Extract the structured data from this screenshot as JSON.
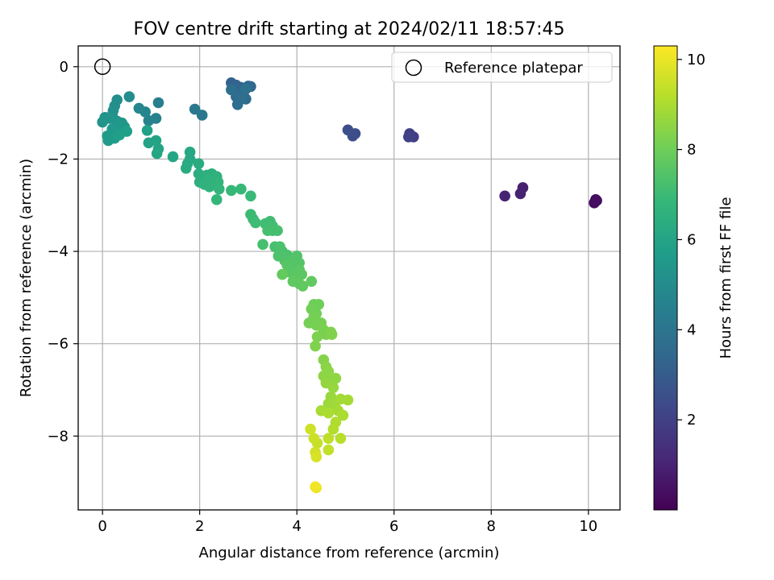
{
  "chart_data": {
    "type": "scatter",
    "title": "FOV centre drift starting at 2024/02/11 18:57:45",
    "xlabel": "Angular distance from reference (arcmin)",
    "ylabel": "Rotation from reference (arcmin)",
    "xlim": [
      -0.5,
      10.65
    ],
    "ylim": [
      -9.6,
      0.45
    ],
    "xticks": [
      0,
      2,
      4,
      6,
      8,
      10
    ],
    "xtick_labels": [
      "0",
      "2",
      "4",
      "6",
      "8",
      "10"
    ],
    "yticks": [
      0,
      -2,
      -4,
      -6,
      -8
    ],
    "ytick_labels": [
      "0",
      "−2",
      "−4",
      "−6",
      "−8"
    ],
    "grid": true,
    "legend": {
      "placement": "upper right",
      "entries": [
        "Reference platepar"
      ]
    },
    "reference_point": {
      "x": 0,
      "y": 0
    },
    "colorbar": {
      "label": "Hours from first FF file",
      "range": [
        0.0,
        10.3
      ],
      "ticks": [
        2,
        4,
        6,
        8,
        10
      ],
      "tick_labels": [
        "2",
        "4",
        "6",
        "8",
        "10"
      ],
      "colormap_stops": [
        "#440154",
        "#482878",
        "#3e4989",
        "#31688e",
        "#26828e",
        "#1f9e89",
        "#35b779",
        "#6ece58",
        "#b5de2b",
        "#fde725"
      ]
    },
    "series": [
      {
        "points": [
          [
            10.15,
            -2.88,
            0.3
          ],
          [
            10.12,
            -2.95,
            0.35
          ],
          [
            10.17,
            -2.9,
            0.4
          ],
          [
            8.65,
            -2.62,
            0.9
          ],
          [
            8.6,
            -2.75,
            0.95
          ],
          [
            8.28,
            -2.8,
            1.0
          ],
          [
            6.4,
            -1.52,
            1.9
          ],
          [
            6.32,
            -1.45,
            1.95
          ],
          [
            6.3,
            -1.52,
            2.0
          ],
          [
            5.2,
            -1.45,
            2.4
          ],
          [
            5.15,
            -1.5,
            2.45
          ],
          [
            5.05,
            -1.37,
            2.5
          ],
          [
            2.65,
            -0.35,
            3.2
          ],
          [
            2.7,
            -0.5,
            3.25
          ],
          [
            2.75,
            -0.4,
            3.3
          ],
          [
            2.8,
            -0.55,
            3.35
          ],
          [
            2.85,
            -0.45,
            3.4
          ],
          [
            3.0,
            -0.42,
            3.45
          ],
          [
            3.05,
            -0.43,
            3.5
          ],
          [
            2.9,
            -0.6,
            3.55
          ],
          [
            2.75,
            -0.65,
            3.6
          ],
          [
            2.95,
            -0.7,
            3.6
          ],
          [
            2.78,
            -0.82,
            3.7
          ],
          [
            2.85,
            -0.7,
            3.75
          ],
          [
            2.65,
            -0.5,
            3.8
          ],
          [
            2.95,
            -0.48,
            3.85
          ],
          [
            2.05,
            -1.05,
            4.1
          ],
          [
            1.9,
            -0.92,
            4.2
          ],
          [
            1.15,
            -0.78,
            4.4
          ],
          [
            1.1,
            -1.12,
            4.5
          ],
          [
            0.95,
            -1.17,
            4.6
          ],
          [
            0.88,
            -0.98,
            4.7
          ],
          [
            0.75,
            -0.9,
            4.8
          ],
          [
            0.55,
            -0.65,
            5.0
          ],
          [
            0.3,
            -0.72,
            5.05
          ],
          [
            0.25,
            -0.85,
            5.1
          ],
          [
            0.22,
            -0.95,
            5.15
          ],
          [
            0.2,
            -1.05,
            5.2
          ],
          [
            0.05,
            -1.1,
            5.25
          ],
          [
            0.0,
            -1.2,
            5.3
          ],
          [
            0.15,
            -1.12,
            5.3
          ],
          [
            0.3,
            -1.18,
            5.35
          ],
          [
            0.4,
            -1.22,
            5.4
          ],
          [
            0.45,
            -1.3,
            5.45
          ],
          [
            0.3,
            -1.3,
            5.5
          ],
          [
            0.2,
            -1.35,
            5.55
          ],
          [
            0.1,
            -1.5,
            5.6
          ],
          [
            0.12,
            -1.6,
            5.65
          ],
          [
            0.25,
            -1.55,
            5.7
          ],
          [
            0.35,
            -1.48,
            5.75
          ],
          [
            0.5,
            -1.4,
            5.8
          ],
          [
            0.92,
            -1.38,
            5.85
          ],
          [
            0.95,
            -1.65,
            5.9
          ],
          [
            1.1,
            -1.6,
            5.95
          ],
          [
            1.15,
            -1.78,
            6.0
          ],
          [
            1.12,
            -1.88,
            6.05
          ],
          [
            1.45,
            -1.95,
            6.1
          ],
          [
            1.8,
            -1.85,
            6.15
          ],
          [
            1.8,
            -2.0,
            6.2
          ],
          [
            1.75,
            -2.1,
            6.25
          ],
          [
            1.72,
            -2.2,
            6.3
          ],
          [
            1.98,
            -2.1,
            6.35
          ],
          [
            1.98,
            -2.32,
            6.4
          ],
          [
            2.0,
            -2.5,
            6.45
          ],
          [
            2.15,
            -2.35,
            6.5
          ],
          [
            2.25,
            -2.32,
            6.5
          ],
          [
            2.35,
            -2.38,
            6.55
          ],
          [
            2.2,
            -2.45,
            6.6
          ],
          [
            2.1,
            -2.55,
            6.6
          ],
          [
            2.2,
            -2.6,
            6.65
          ],
          [
            2.38,
            -2.5,
            6.7
          ],
          [
            2.4,
            -2.65,
            6.75
          ],
          [
            2.35,
            -2.88,
            6.8
          ],
          [
            2.65,
            -2.68,
            6.85
          ],
          [
            2.85,
            -2.65,
            6.9
          ],
          [
            3.05,
            -2.8,
            6.95
          ],
          [
            3.05,
            -3.2,
            7.0
          ],
          [
            3.1,
            -3.3,
            7.0
          ],
          [
            3.15,
            -3.38,
            7.05
          ],
          [
            3.35,
            -3.4,
            7.1
          ],
          [
            3.45,
            -3.35,
            7.1
          ],
          [
            3.5,
            -3.45,
            7.15
          ],
          [
            3.5,
            -3.55,
            7.15
          ],
          [
            3.4,
            -3.55,
            7.2
          ],
          [
            3.6,
            -3.55,
            7.2
          ],
          [
            3.3,
            -3.85,
            7.25
          ],
          [
            3.55,
            -3.9,
            7.25
          ],
          [
            3.65,
            -3.9,
            7.3
          ],
          [
            3.7,
            -4.0,
            7.3
          ],
          [
            3.62,
            -4.1,
            7.35
          ],
          [
            3.8,
            -4.08,
            7.35
          ],
          [
            3.75,
            -4.2,
            7.4
          ],
          [
            3.85,
            -4.2,
            7.4
          ],
          [
            3.95,
            -4.15,
            7.45
          ],
          [
            4.0,
            -4.1,
            7.45
          ],
          [
            3.9,
            -4.3,
            7.5
          ],
          [
            4.05,
            -4.25,
            7.5
          ],
          [
            3.8,
            -4.3,
            7.55
          ],
          [
            3.85,
            -4.45,
            7.55
          ],
          [
            3.95,
            -4.5,
            7.6
          ],
          [
            4.05,
            -4.4,
            7.6
          ],
          [
            4.1,
            -4.5,
            7.65
          ],
          [
            4.0,
            -4.6,
            7.65
          ],
          [
            3.92,
            -4.65,
            7.7
          ],
          [
            4.05,
            -4.7,
            7.7
          ],
          [
            4.12,
            -4.75,
            7.75
          ],
          [
            4.3,
            -4.65,
            7.75
          ],
          [
            3.7,
            -4.5,
            7.8
          ],
          [
            4.35,
            -5.15,
            8.0
          ],
          [
            4.45,
            -5.15,
            8.0
          ],
          [
            4.3,
            -5.25,
            8.05
          ],
          [
            4.4,
            -5.35,
            8.05
          ],
          [
            4.35,
            -5.42,
            8.1
          ],
          [
            4.25,
            -5.55,
            8.1
          ],
          [
            4.4,
            -5.6,
            8.15
          ],
          [
            4.5,
            -5.55,
            8.15
          ],
          [
            4.55,
            -5.7,
            8.2
          ],
          [
            4.6,
            -5.8,
            8.2
          ],
          [
            4.42,
            -5.85,
            8.25
          ],
          [
            4.7,
            -5.75,
            8.25
          ],
          [
            4.72,
            -5.8,
            8.3
          ],
          [
            4.38,
            -6.05,
            8.3
          ],
          [
            4.55,
            -6.35,
            8.4
          ],
          [
            4.6,
            -6.5,
            8.45
          ],
          [
            4.65,
            -6.6,
            8.5
          ],
          [
            4.55,
            -6.7,
            8.5
          ],
          [
            4.7,
            -6.75,
            8.55
          ],
          [
            4.8,
            -6.75,
            8.55
          ],
          [
            4.6,
            -6.85,
            8.6
          ],
          [
            4.75,
            -6.95,
            8.65
          ],
          [
            4.7,
            -7.15,
            8.7
          ],
          [
            4.65,
            -7.3,
            8.75
          ],
          [
            4.78,
            -7.35,
            8.8
          ],
          [
            4.9,
            -7.2,
            8.85
          ],
          [
            5.05,
            -7.22,
            8.9
          ],
          [
            4.85,
            -7.45,
            8.9
          ],
          [
            4.5,
            -7.45,
            8.95
          ],
          [
            4.65,
            -7.5,
            9.0
          ],
          [
            4.95,
            -7.55,
            9.0
          ],
          [
            4.8,
            -7.7,
            9.05
          ],
          [
            4.75,
            -7.85,
            9.1
          ],
          [
            4.9,
            -8.05,
            9.2
          ],
          [
            4.65,
            -8.05,
            9.3
          ],
          [
            4.65,
            -8.3,
            9.35
          ],
          [
            4.42,
            -8.15,
            9.4
          ],
          [
            4.35,
            -8.05,
            9.5
          ],
          [
            4.28,
            -7.85,
            9.55
          ],
          [
            4.38,
            -8.35,
            9.6
          ],
          [
            4.4,
            -8.45,
            9.7
          ],
          [
            4.4,
            -9.12,
            10.0
          ],
          [
            4.38,
            -9.1,
            10.1
          ]
        ]
      }
    ]
  }
}
